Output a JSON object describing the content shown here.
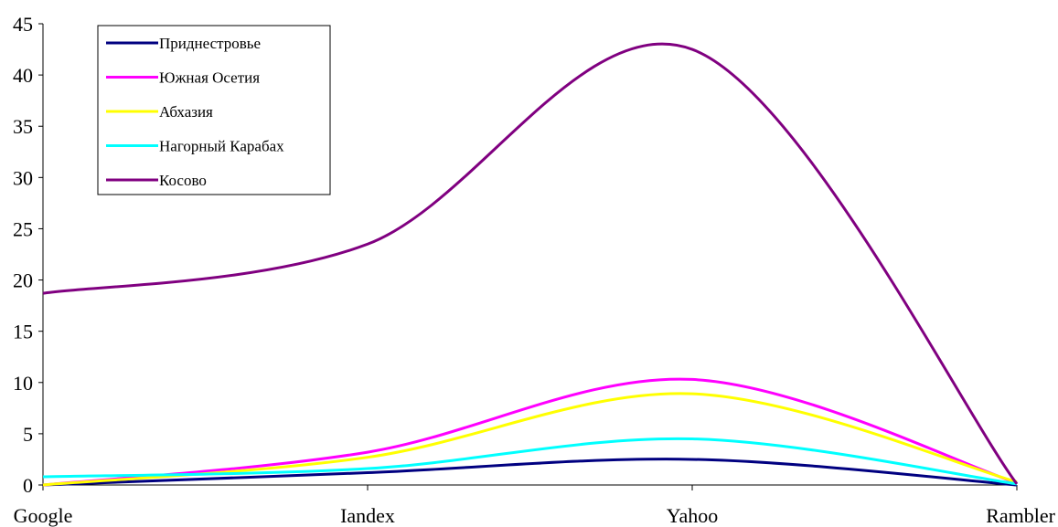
{
  "chart_data": {
    "type": "line",
    "smooth": true,
    "categories": [
      "Google",
      "Iandex",
      "Yahoo",
      "Rambler"
    ],
    "ylim": [
      0,
      45
    ],
    "yticks": [
      0,
      5,
      10,
      15,
      20,
      25,
      30,
      35,
      40,
      45
    ],
    "grid": false,
    "legend_position": "top-left",
    "series": [
      {
        "name": "Приднестровье",
        "color": "#000080",
        "values": [
          0.0,
          1.2,
          2.5,
          0.0
        ]
      },
      {
        "name": "Южная Осетия",
        "color": "#ff00ff",
        "values": [
          0.0,
          3.2,
          10.3,
          0.2
        ]
      },
      {
        "name": "Абхазия",
        "color": "#ffff00",
        "values": [
          0.0,
          2.7,
          8.9,
          0.3
        ]
      },
      {
        "name": "Нагорный Карабах",
        "color": "#00ffff",
        "values": [
          0.8,
          1.6,
          4.5,
          0.1
        ]
      },
      {
        "name": "Косово",
        "color": "#800080",
        "values": [
          18.7,
          23.5,
          42.5,
          0.1
        ]
      }
    ]
  }
}
